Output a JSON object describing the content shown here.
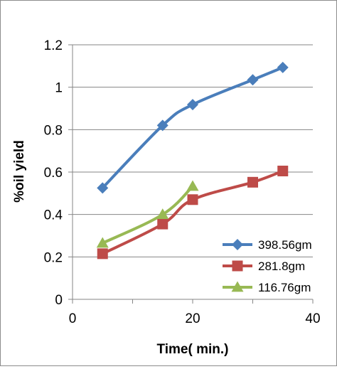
{
  "chart_data": {
    "type": "line",
    "title": "",
    "xlabel": "Time( min.)",
    "ylabel": "%oil yield",
    "xlim": [
      0,
      40
    ],
    "ylim": [
      0,
      1.2
    ],
    "x_ticks": [
      0,
      20,
      40
    ],
    "y_ticks": [
      0,
      0.2,
      0.4,
      0.6,
      0.8,
      1,
      1.2
    ],
    "x_tick_labels": [
      "0",
      "20",
      "40"
    ],
    "y_tick_labels": [
      "0",
      "0.2",
      "0.4",
      "0.6",
      "0.8",
      "1",
      "1.2"
    ],
    "grid": "horizontal",
    "legend_position": "bottom-right",
    "series": [
      {
        "name": "398.56gm",
        "color": "#4a7ebb",
        "marker": "diamond",
        "x": [
          5,
          15,
          20,
          30,
          35
        ],
        "y": [
          0.525,
          0.82,
          0.918,
          1.035,
          1.093
        ]
      },
      {
        "name": "281.8gm",
        "color": "#be4b48",
        "marker": "square",
        "x": [
          5,
          15,
          20,
          30,
          35
        ],
        "y": [
          0.215,
          0.355,
          0.47,
          0.552,
          0.605
        ]
      },
      {
        "name": "116.76gm",
        "color": "#98b954",
        "marker": "triangle",
        "x": [
          5,
          15,
          20
        ],
        "y": [
          0.265,
          0.4,
          0.533
        ]
      }
    ]
  }
}
